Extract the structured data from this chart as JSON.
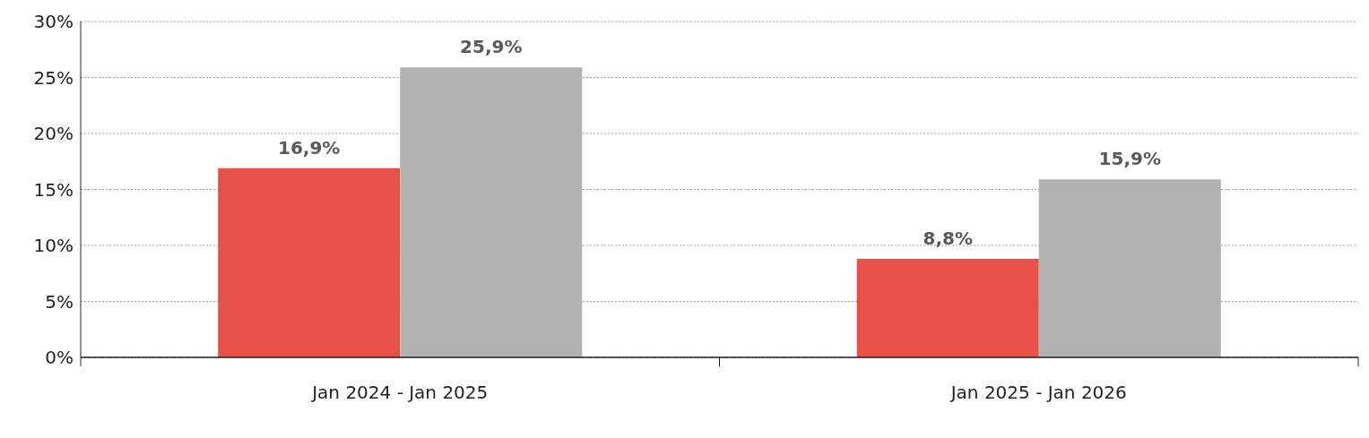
{
  "chart_data": {
    "type": "bar",
    "categories": [
      "Jan 2024 - Jan 2025",
      "Jan 2025 - Jan 2026"
    ],
    "series": [
      {
        "color": "#e8504a",
        "values": [
          16.9,
          8.8
        ],
        "value_labels": [
          "16,9%",
          "8,8%"
        ]
      },
      {
        "color": "#b2b2b2",
        "values": [
          25.9,
          15.9
        ],
        "value_labels": [
          "25,9%",
          "15,9%"
        ]
      }
    ],
    "ylim": [
      0,
      30
    ],
    "yticks": [
      {
        "value": 0,
        "label": "0%"
      },
      {
        "value": 5,
        "label": "5%"
      },
      {
        "value": 10,
        "label": "10%"
      },
      {
        "value": 15,
        "label": "15%"
      },
      {
        "value": 20,
        "label": "20%"
      },
      {
        "value": 25,
        "label": "25%"
      },
      {
        "value": 30,
        "label": "30%"
      }
    ],
    "grid": "y"
  }
}
